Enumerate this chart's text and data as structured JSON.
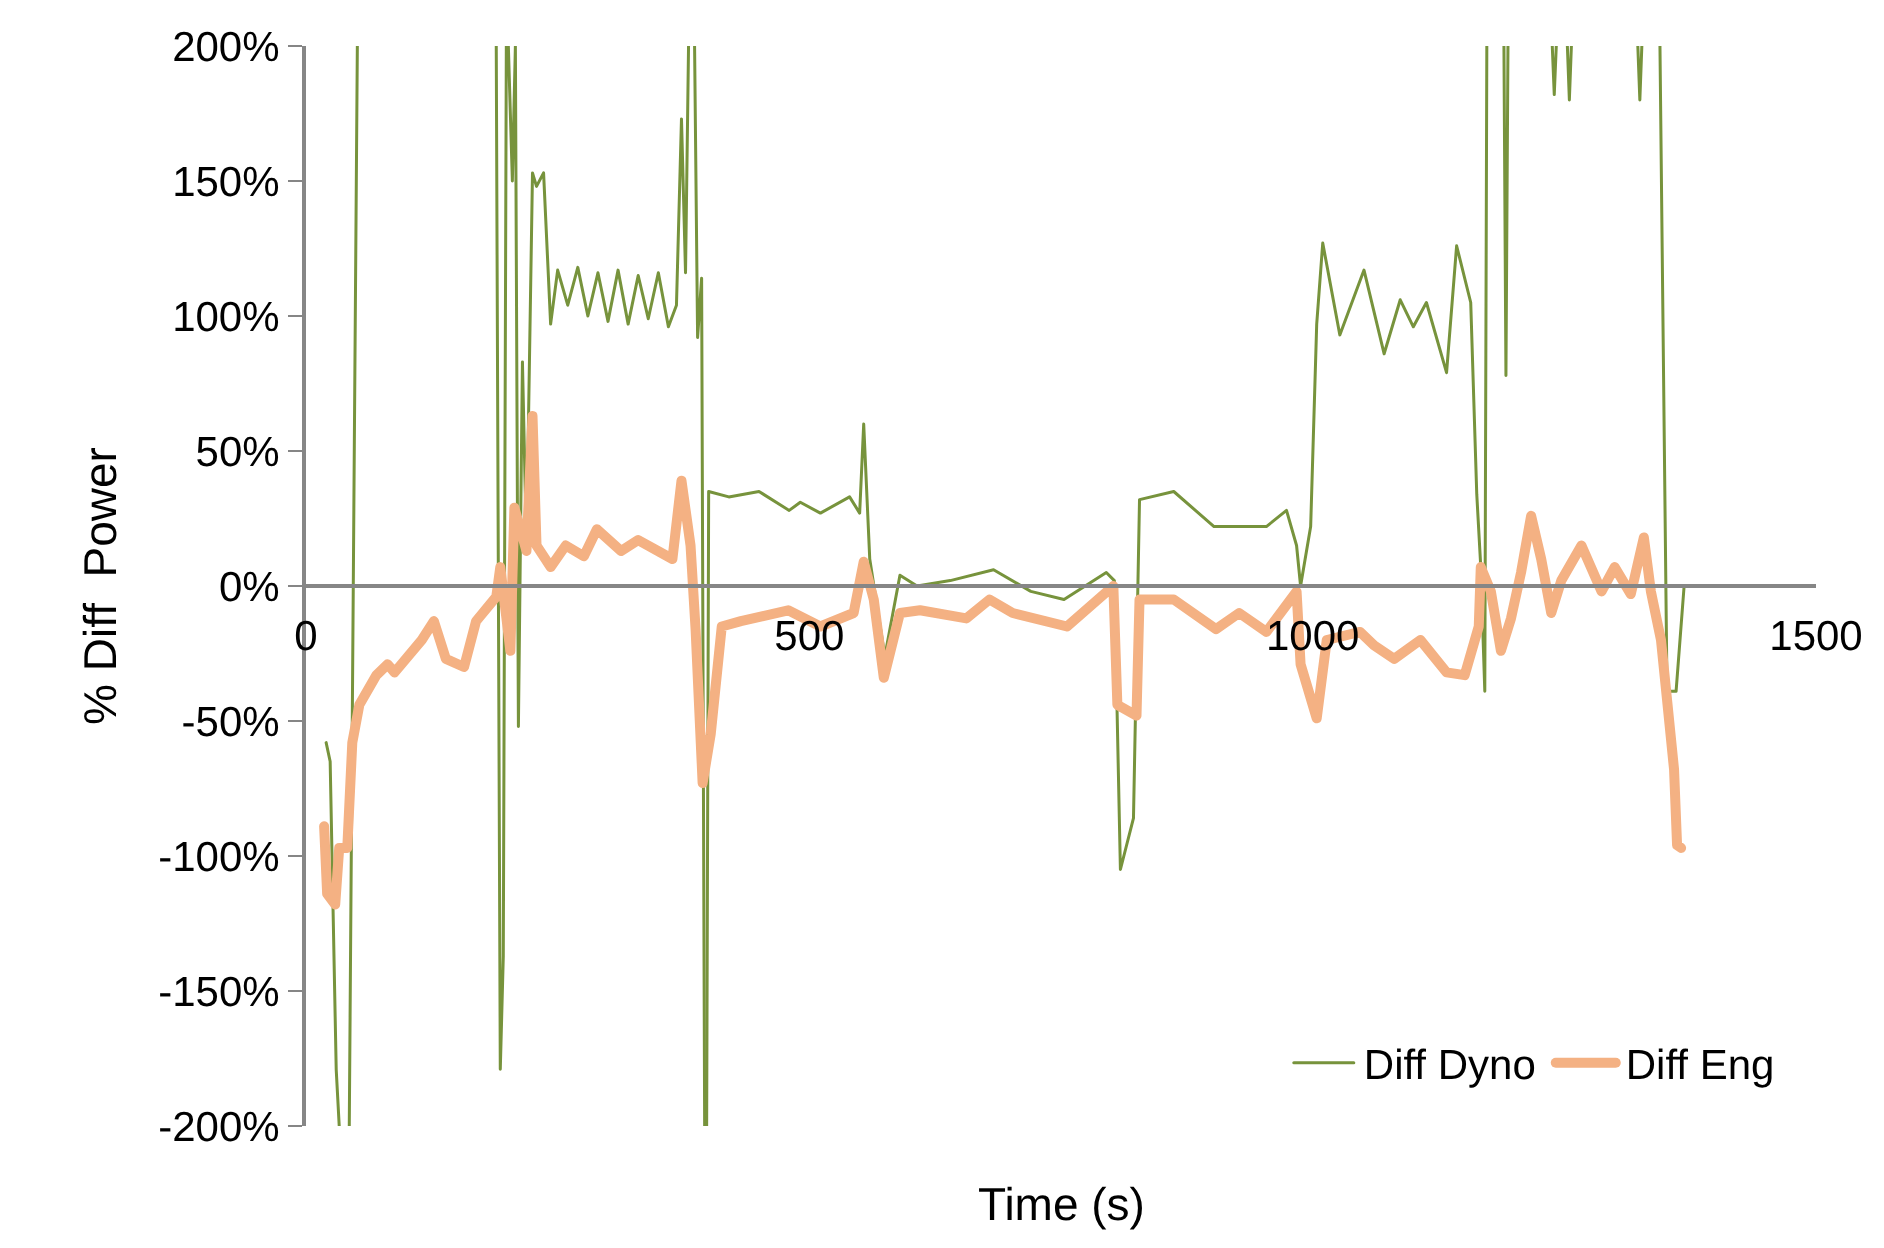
{
  "chart_data": {
    "type": "line",
    "xlabel": "Time (s)",
    "ylabel": "% Diff  Power",
    "xlim": [
      0,
      1500
    ],
    "xticks": [
      0,
      500,
      1000,
      1500
    ],
    "ylim": [
      -200,
      200
    ],
    "yticks": [
      {
        "value": -200,
        "label": "-200%"
      },
      {
        "value": -150,
        "label": "-150%"
      },
      {
        "value": -100,
        "label": "-100%"
      },
      {
        "value": -50,
        "label": "-50%"
      },
      {
        "value": 0,
        "label": "0%"
      },
      {
        "value": 50,
        "label": "50%"
      },
      {
        "value": 100,
        "label": "100%"
      },
      {
        "value": 150,
        "label": "150%"
      },
      {
        "value": 200,
        "label": "200%"
      }
    ],
    "grid": false,
    "legend": "bottom right",
    "marker": "none",
    "line_style": "solid",
    "series": [
      {
        "name": "Diff Dyno",
        "color": "#77933c",
        "x": [
          20,
          24,
          30,
          33,
          null,
          43,
          48,
          51,
          null,
          189,
          193,
          196,
          199,
          201,
          205,
          208,
          211,
          215,
          219,
          225,
          229,
          236,
          243,
          250,
          260,
          270,
          280,
          290,
          300,
          310,
          320,
          330,
          340,
          350,
          360,
          368,
          373,
          377,
          380,
          null,
          386,
          389,
          393,
          396,
          null,
          398,
          400,
          420,
          450,
          480,
          491,
          511,
          540,
          550,
          554,
          560,
          575,
          590,
          607,
          640,
          683,
          720,
          753,
          795,
          803,
          809,
          822,
          828,
          862,
          902,
          954,
          974,
          984,
          988,
          998,
          1004,
          1010,
          1027,
          1051,
          1071,
          1087,
          1100,
          1113,
          1133,
          1143,
          1157,
          1163,
          1167,
          1171,
          1173,
          null,
          1190,
          1192,
          1194,
          null,
          1238,
          1240,
          1242,
          null,
          1253,
          1255,
          1257,
          null,
          1323,
          1325,
          1327,
          null,
          1345,
          1352,
          1361,
          1369,
          1400,
          1500
        ],
        "values": [
          -58,
          -65,
          -179,
          -200,
          null,
          -200,
          52,
          200,
          null,
          200,
          -179,
          -137,
          200,
          200,
          150,
          200,
          -52,
          83,
          15,
          153,
          148,
          153,
          97,
          117,
          104,
          118,
          100,
          116,
          98,
          117,
          97,
          115,
          99,
          116,
          96,
          104,
          173,
          116,
          200,
          null,
          200,
          92,
          114,
          -200,
          null,
          -200,
          35,
          33,
          35,
          28,
          31,
          27,
          33,
          27,
          60,
          10,
          -26,
          4,
          0,
          2,
          6,
          -2,
          -5,
          5,
          2,
          -105,
          -86,
          32,
          35,
          22,
          22,
          28,
          15,
          0,
          22,
          97,
          127,
          93,
          117,
          86,
          106,
          96,
          105,
          79,
          126,
          105,
          34,
          7,
          -39,
          200,
          null,
          200,
          78,
          200,
          null,
          200,
          182,
          200,
          null,
          200,
          180,
          200,
          null,
          200,
          180,
          200,
          null,
          200,
          -39,
          -39,
          0,
          0,
          0
        ]
      },
      {
        "name": "Diff Eng",
        "color": "#f4b183",
        "x": [
          18,
          21,
          29,
          33,
          41,
          46,
          53,
          70,
          81,
          88,
          115,
          127,
          139,
          157,
          169,
          189,
          193,
          203,
          207,
          219,
          225,
          229,
          243,
          258,
          276,
          289,
          313,
          330,
          364,
          373,
          382,
          387,
          394,
          402,
          413,
          432,
          479,
          511,
          544,
          554,
          564,
          574,
          590,
          610,
          656,
          679,
          702,
          756,
          802,
          806,
          825,
          828,
          862,
          904,
          927,
          954,
          984,
          988,
          1004,
          1014,
          1047,
          1061,
          1081,
          1107,
          1133,
          1151,
          1165,
          1167,
          1177,
          1187,
          1197,
          1207,
          1217,
          1227,
          1237,
          1247,
          1267,
          1287,
          1300,
          1316,
          1329,
          1336,
          1346,
          1352,
          1359,
          1362,
          1366
        ],
        "values": [
          -89,
          -114,
          -118,
          -97,
          -97,
          -58,
          -44,
          -33,
          -29,
          -32,
          -20,
          -13,
          -27,
          -30,
          -13,
          -4,
          7,
          -24,
          29,
          13,
          63,
          15,
          7,
          15,
          11,
          21,
          13,
          17,
          10,
          39,
          15,
          -16,
          -73,
          -55,
          -15,
          -13,
          -9,
          -15,
          -10,
          9,
          -5,
          -34,
          -10,
          -9,
          -12,
          -5,
          -10,
          -15,
          0,
          -44,
          -48,
          -5,
          -5,
          -16,
          -10,
          -17,
          -2,
          -29,
          -49,
          -20,
          -17,
          -22,
          -27,
          -20,
          -32,
          -33,
          -15,
          7,
          -2,
          -24,
          -12,
          5,
          26,
          10,
          -10,
          2,
          15,
          -2,
          7,
          -3,
          18,
          -2,
          -20,
          -42,
          -68,
          -96,
          -97
        ]
      }
    ]
  }
}
